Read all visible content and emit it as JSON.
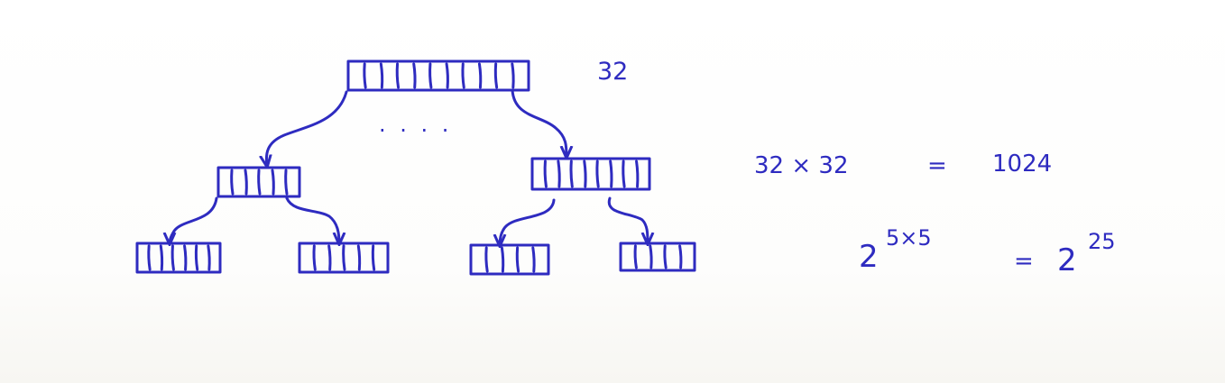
{
  "colors": {
    "ink": "#2e2bc0",
    "background": "#ffffff"
  },
  "diagram": {
    "root_fanout_label": "32",
    "ellipsis": ". . . .",
    "nodes": {
      "root_slots": 11,
      "left_mid_slots": 6,
      "right_mid_slots": 9,
      "leaf_slots": [
        7,
        6,
        5,
        5
      ]
    }
  },
  "equations": {
    "eq1_lhs": "32 × 32",
    "eq1_eq": "=",
    "eq1_rhs": "1024",
    "eq2_base": "2",
    "eq2_exp": "5×5",
    "eq2_eq": "=",
    "eq2_rhs_base": "2",
    "eq2_rhs_exp": "25"
  }
}
